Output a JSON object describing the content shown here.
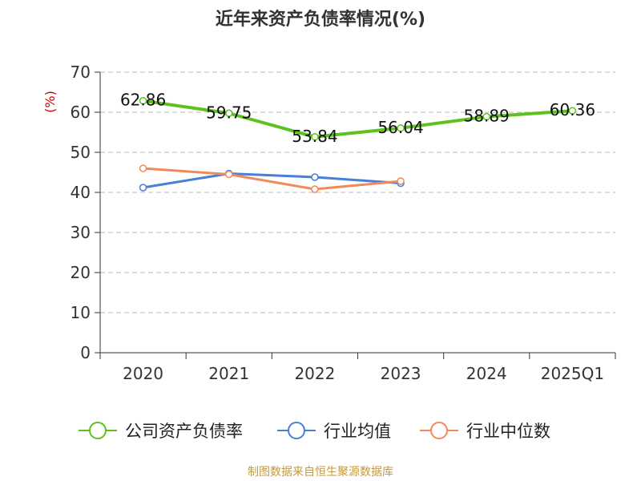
{
  "colors": {
    "company": "#5dc21e",
    "industry_avg": "#4a7fd6",
    "industry_median": "#f28a57",
    "grid": "#bbbbbb",
    "axis": "#333333",
    "unit_label": "#cc0000",
    "source": "#c79a3a"
  },
  "chart_data": {
    "type": "line",
    "title": "近年来资产负债率情况(%)",
    "ylabel": "(%)",
    "xlabel": "",
    "categories": [
      "2020",
      "2021",
      "2022",
      "2023",
      "2024",
      "2025Q1"
    ],
    "ylim": [
      0,
      70
    ],
    "yticks": [
      0,
      10,
      20,
      30,
      40,
      50,
      60,
      70
    ],
    "grid": true,
    "grid_style": "dashed",
    "legend_position": "bottom",
    "series": [
      {
        "name": "公司资产负债率",
        "values": [
          62.86,
          59.75,
          53.84,
          56.04,
          58.89,
          60.36
        ],
        "labels": [
          "62.86",
          "59.75",
          "53.84",
          "56.04",
          "58.89",
          "60.36"
        ],
        "color_key": "company"
      },
      {
        "name": "行业均值",
        "values": [
          41.2,
          44.7,
          43.8,
          42.3,
          null,
          null
        ],
        "color_key": "industry_avg"
      },
      {
        "name": "行业中位数",
        "values": [
          46.0,
          44.5,
          40.8,
          42.8,
          null,
          null
        ],
        "color_key": "industry_median"
      }
    ]
  },
  "footer": {
    "source": "制图数据来自恒生聚源数据库"
  }
}
